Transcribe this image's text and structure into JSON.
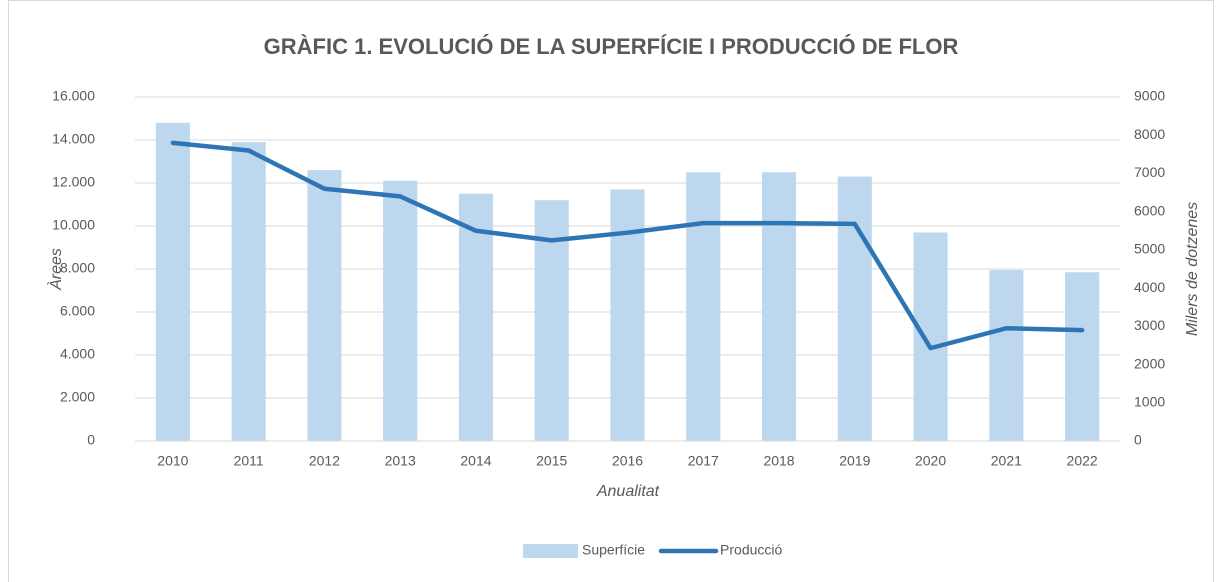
{
  "chart_data": {
    "type": "combo",
    "title": "GRÀFIC 1. EVOLUCIÓ DE LA SUPERFÍCIE I PRODUCCIÓ DE FLOR",
    "xlabel": "Anualitat",
    "ylabel": "Àrees",
    "y2label": "Milers de dotzenes",
    "categories": [
      "2010",
      "2011",
      "2012",
      "2013",
      "2014",
      "2015",
      "2016",
      "2017",
      "2018",
      "2019",
      "2020",
      "2021",
      "2022"
    ],
    "series": [
      {
        "name": "Superfície",
        "type": "bar",
        "color": "#bdd7ee",
        "values": [
          14800,
          13900,
          12600,
          12100,
          11500,
          11200,
          11700,
          12500,
          12500,
          12300,
          9700,
          7950,
          7850
        ]
      },
      {
        "name": "Producció",
        "type": "line",
        "axis": "y2",
        "color": "#2e75b6",
        "values": [
          7800,
          7600,
          6600,
          6400,
          5500,
          5250,
          5450,
          5700,
          5700,
          5680,
          2430,
          2950,
          2900
        ]
      }
    ],
    "ylim": [
      0,
      16000
    ],
    "yticks": [
      0,
      {
        "value": 2000,
        "label": "2.000"
      },
      {
        "value": 4000,
        "label": "4.000"
      },
      {
        "value": 6000,
        "label": "6.000"
      },
      {
        "value": 8000,
        "label": "8.000"
      },
      {
        "value": 10000,
        "label": "10.000"
      },
      {
        "value": 12000,
        "label": "12.000"
      },
      {
        "value": 14000,
        "label": "14.000"
      },
      {
        "value": 16000,
        "label": "16.000"
      }
    ],
    "y2lim": [
      0,
      9000
    ],
    "y2ticks": [
      0,
      1000,
      2000,
      3000,
      4000,
      5000,
      6000,
      7000,
      8000,
      9000
    ],
    "grid": true,
    "legend": "bottom"
  }
}
